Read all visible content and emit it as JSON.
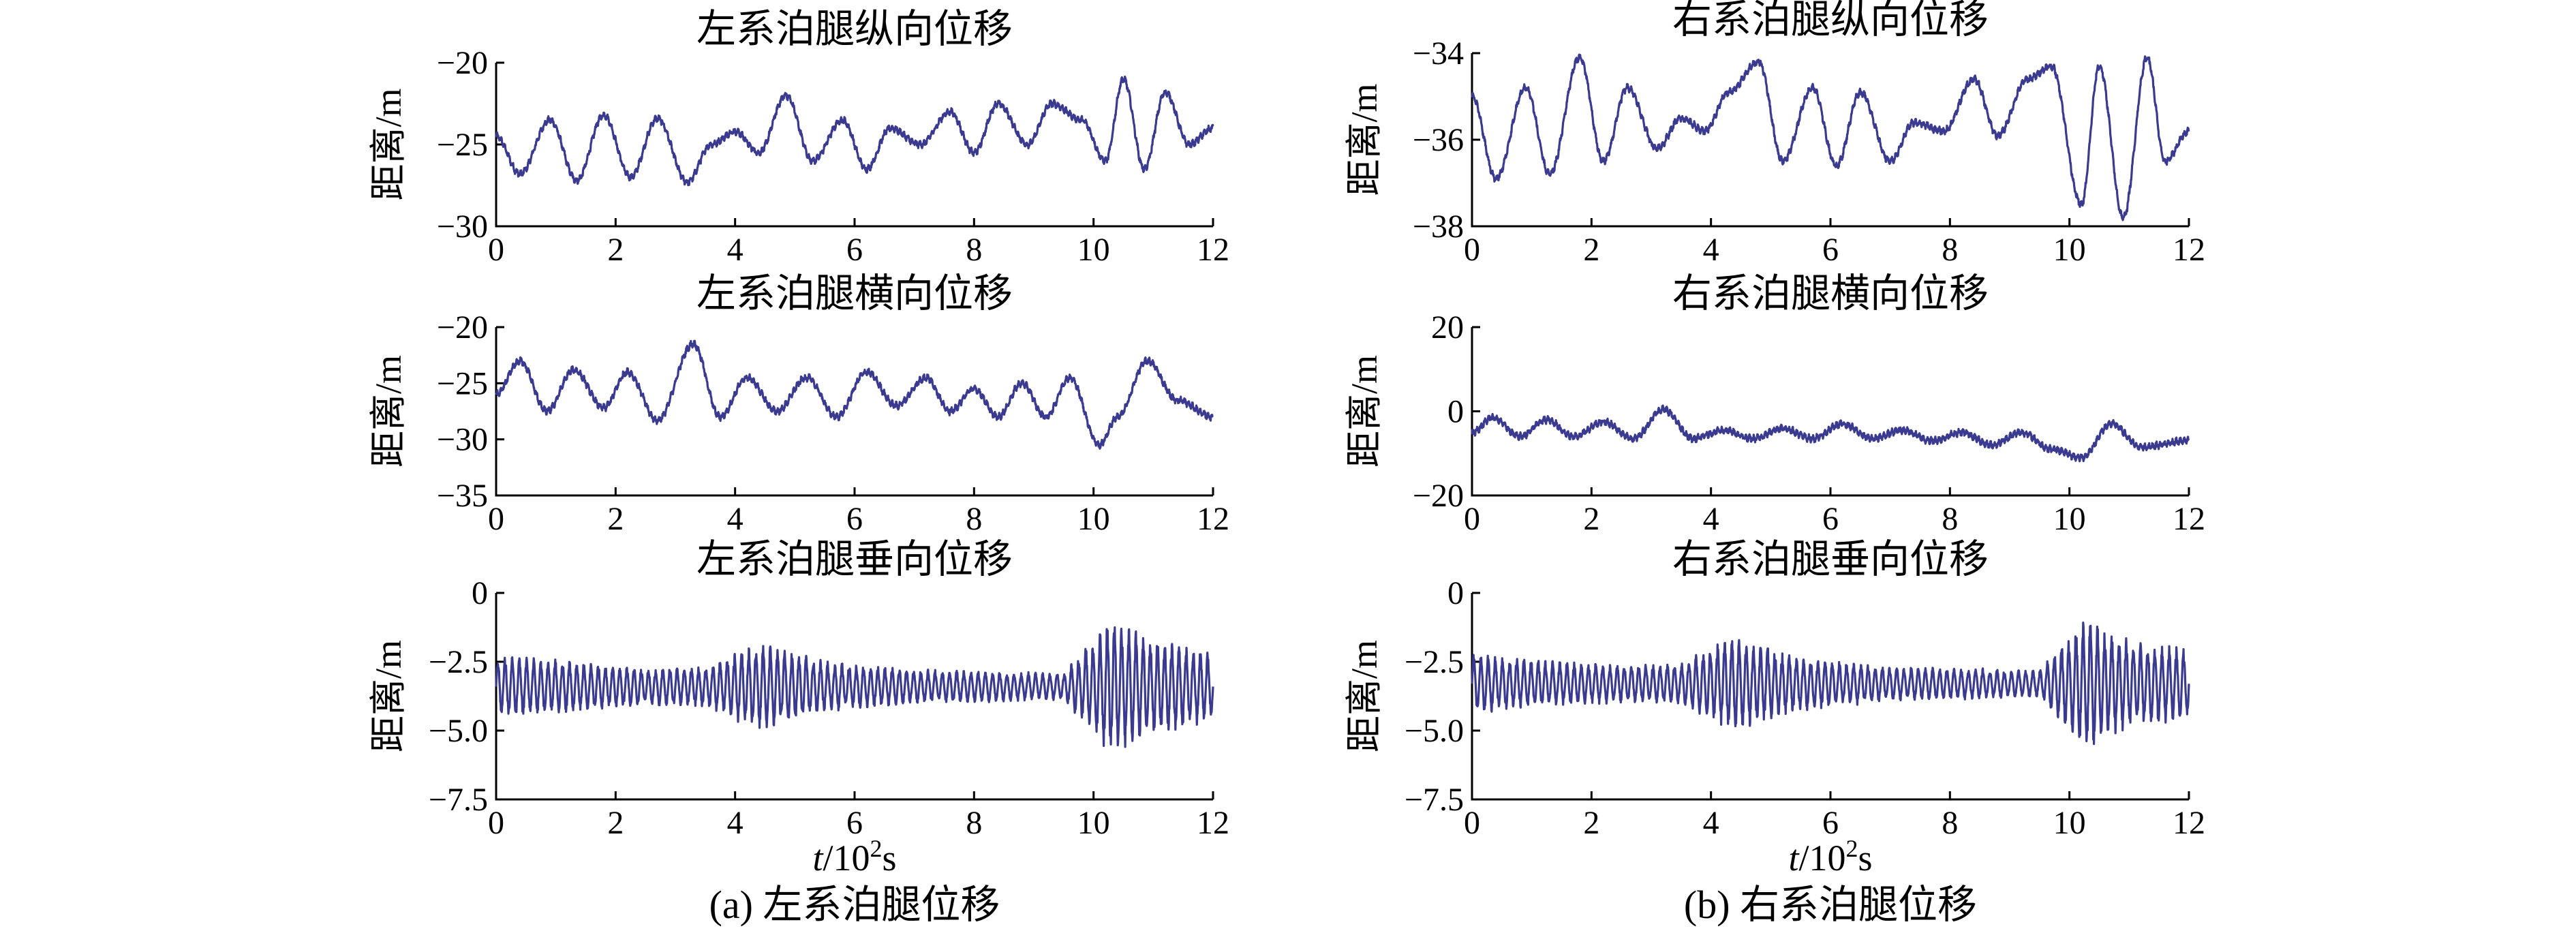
{
  "figure": {
    "captions": {
      "a": "(a) 左系泊腿位移",
      "b": "(b) 右系泊腿位移"
    },
    "shared_xlabel": {
      "italic": "t",
      "rest": "/10",
      "sup": "2",
      "unit": "s"
    }
  },
  "chart_data": [
    {
      "id": "L1",
      "type": "line",
      "title": "左系泊腿纵向位移",
      "ylabel": "距离/m",
      "xlim": [
        0,
        12
      ],
      "ylim": [
        -30,
        -20
      ],
      "xticks": [
        "0",
        "2",
        "4",
        "6",
        "8",
        "10",
        "12"
      ],
      "yticks": [
        "−30",
        "−25",
        "−20"
      ],
      "color": "#3a3a90",
      "series": [
        {
          "x": [
            0,
            0.4,
            0.9,
            1.35,
            1.8,
            2.25,
            2.7,
            3.2,
            3.6,
            4.0,
            4.4,
            4.85,
            5.3,
            5.8,
            6.2,
            6.6,
            7.1,
            7.6,
            8.0,
            8.4,
            8.9,
            9.3,
            9.8,
            10.2,
            10.5,
            10.85,
            11.2,
            11.6,
            12
          ],
          "y": [
            -24.5,
            -26.8,
            -23.5,
            -27.2,
            -23.2,
            -27.0,
            -23.4,
            -27.3,
            -25.0,
            -24.2,
            -25.5,
            -22.0,
            -26.0,
            -23.5,
            -26.5,
            -24.0,
            -25.0,
            -23.0,
            -25.5,
            -22.5,
            -25.0,
            -22.5,
            -23.5,
            -26.0,
            -21.0,
            -26.5,
            -21.8,
            -25.0,
            -24.0
          ]
        }
      ]
    },
    {
      "id": "L2",
      "type": "line",
      "title": "左系泊腿横向位移",
      "ylabel": "距离/m",
      "xlim": [
        0,
        12
      ],
      "ylim": [
        -35,
        -20
      ],
      "xticks": [
        "0",
        "2",
        "4",
        "6",
        "8",
        "10",
        "12"
      ],
      "yticks": [
        "−35",
        "−30",
        "−25",
        "−20"
      ],
      "color": "#3a3a90",
      "series": [
        {
          "x": [
            0,
            0.4,
            0.85,
            1.3,
            1.8,
            2.2,
            2.7,
            3.3,
            3.75,
            4.2,
            4.7,
            5.2,
            5.7,
            6.2,
            6.7,
            7.2,
            7.6,
            8.0,
            8.4,
            8.8,
            9.2,
            9.6,
            10.1,
            10.4,
            10.9,
            11.4,
            12
          ],
          "y": [
            -26.0,
            -23.0,
            -27.5,
            -23.8,
            -27.2,
            -24.0,
            -28.3,
            -21.5,
            -28.0,
            -24.5,
            -27.5,
            -24.5,
            -28.0,
            -24.0,
            -27.0,
            -24.5,
            -27.5,
            -25.5,
            -28.0,
            -25.0,
            -28.0,
            -24.5,
            -30.5,
            -28.0,
            -23.0,
            -26.5,
            -28.0
          ]
        }
      ]
    },
    {
      "id": "L3",
      "type": "line",
      "title": "左系泊腿垂向位移",
      "ylabel": "距离/m",
      "xlim": [
        0,
        12
      ],
      "ylim": [
        -7.5,
        0
      ],
      "xticks": [
        "0",
        "2",
        "4",
        "6",
        "8",
        "10",
        "12"
      ],
      "yticks": [
        "−7.5",
        "−5.0",
        "−2.5",
        "0"
      ],
      "color": "#3a3a90",
      "base": -3.4,
      "period": 0.12,
      "envelope": [
        [
          0,
          0.9
        ],
        [
          1.0,
          0.8
        ],
        [
          2.5,
          0.55
        ],
        [
          3.5,
          0.6
        ],
        [
          4.4,
          1.3
        ],
        [
          5.5,
          0.75
        ],
        [
          7.0,
          0.5
        ],
        [
          8.5,
          0.45
        ],
        [
          9.5,
          0.4
        ],
        [
          10.3,
          2.1
        ],
        [
          10.8,
          1.5
        ],
        [
          12,
          1.0
        ]
      ]
    },
    {
      "id": "R1",
      "type": "line",
      "title": "右系泊腿纵向位移",
      "ylabel": "距离/m",
      "xlim": [
        0,
        12
      ],
      "ylim": [
        -38,
        -34
      ],
      "xticks": [
        "0",
        "2",
        "4",
        "6",
        "8",
        "10",
        "12"
      ],
      "yticks": [
        "−38",
        "−36",
        "−34"
      ],
      "color": "#3a3a90",
      "series": [
        {
          "x": [
            0,
            0.4,
            0.9,
            1.3,
            1.8,
            2.2,
            2.6,
            3.1,
            3.5,
            3.9,
            4.3,
            4.8,
            5.2,
            5.7,
            6.1,
            6.5,
            7.0,
            7.4,
            7.9,
            8.4,
            8.8,
            9.3,
            9.7,
            10.2,
            10.5,
            10.9,
            11.3,
            11.6,
            12
          ],
          "y": [
            -35.0,
            -36.9,
            -34.8,
            -36.8,
            -34.1,
            -36.5,
            -34.8,
            -36.2,
            -35.5,
            -35.8,
            -34.9,
            -34.2,
            -36.5,
            -34.8,
            -36.6,
            -34.9,
            -36.5,
            -35.6,
            -35.8,
            -34.6,
            -35.9,
            -34.6,
            -34.3,
            -37.5,
            -34.3,
            -37.8,
            -34.1,
            -36.5,
            -35.8
          ]
        }
      ]
    },
    {
      "id": "R2",
      "type": "line",
      "title": "右系泊腿横向位移",
      "ylabel": "距离/m",
      "xlim": [
        0,
        12
      ],
      "ylim": [
        -20,
        20
      ],
      "xticks": [
        "0",
        "2",
        "4",
        "6",
        "8",
        "10",
        "12"
      ],
      "yticks": [
        "−20",
        "0",
        "20"
      ],
      "color": "#3a3a90",
      "series": [
        {
          "x": [
            0,
            0.35,
            0.8,
            1.25,
            1.7,
            2.2,
            2.7,
            3.2,
            3.7,
            4.2,
            4.7,
            5.2,
            5.7,
            6.2,
            6.7,
            7.2,
            7.7,
            8.2,
            8.7,
            9.2,
            9.7,
            10.2,
            10.7,
            11.2,
            12
          ],
          "y": [
            -5.0,
            -1.5,
            -6.0,
            -2.0,
            -6.0,
            -2.5,
            -6.5,
            0.5,
            -6.5,
            -4.5,
            -6.5,
            -4.0,
            -6.5,
            -3.0,
            -6.5,
            -4.5,
            -7.0,
            -5.0,
            -8.0,
            -5.0,
            -9.0,
            -11.0,
            -3.0,
            -8.5,
            -7.0
          ]
        }
      ]
    },
    {
      "id": "R3",
      "type": "line",
      "title": "右系泊腿垂向位移",
      "ylabel": "距离/m",
      "xlim": [
        0,
        12
      ],
      "ylim": [
        -7.5,
        0
      ],
      "xticks": [
        "0",
        "2",
        "4",
        "6",
        "8",
        "10",
        "12"
      ],
      "yticks": [
        "−7.5",
        "−5.0",
        "−2.5",
        "0"
      ],
      "color": "#3a3a90",
      "base": -3.3,
      "period": 0.12,
      "envelope": [
        [
          0,
          0.9
        ],
        [
          1.0,
          0.7
        ],
        [
          2.5,
          0.55
        ],
        [
          3.5,
          0.6
        ],
        [
          4.3,
          1.4
        ],
        [
          5.5,
          0.8
        ],
        [
          7.0,
          0.5
        ],
        [
          8.5,
          0.45
        ],
        [
          9.5,
          0.4
        ],
        [
          10.3,
          2.0
        ],
        [
          10.8,
          1.4
        ],
        [
          12,
          1.0
        ]
      ]
    }
  ]
}
